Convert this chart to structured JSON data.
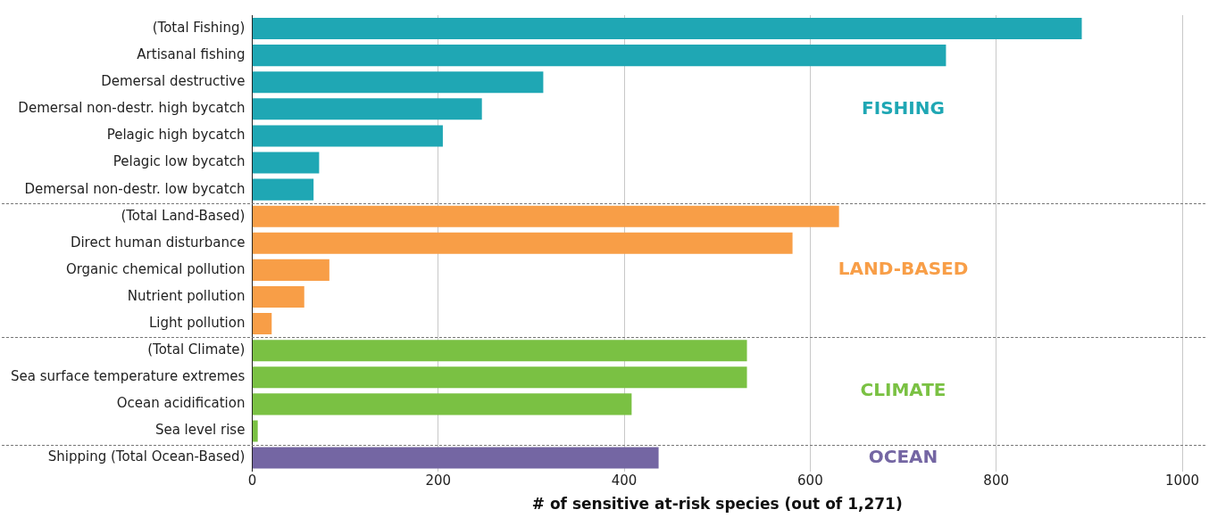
{
  "chart_data": {
    "type": "bar",
    "orientation": "horizontal",
    "xlabel": "# of sensitive at-risk species (out of 1,271)",
    "categories": [
      "(Total Fishing)",
      "Artisanal fishing",
      "Demersal destructive",
      "Demersal non-destr. high bycatch",
      "Pelagic high bycatch",
      "Pelagic low bycatch",
      "Demersal non-destr. low bycatch",
      "(Total Land-Based)",
      "Direct human disturbance",
      "Organic chemical pollution",
      "Nutrient pollution",
      "Light pollution",
      "(Total Climate)",
      "Sea surface temperature extremes",
      "Ocean acidification",
      "Sea level rise",
      "Shipping (Total Ocean-Based)"
    ],
    "values": [
      892,
      746,
      313,
      247,
      205,
      72,
      66,
      631,
      581,
      83,
      56,
      21,
      532,
      532,
      408,
      6,
      437
    ],
    "colors": [
      "#1fa7b4",
      "#1fa7b4",
      "#1fa7b4",
      "#1fa7b4",
      "#1fa7b4",
      "#1fa7b4",
      "#1fa7b4",
      "#f89e47",
      "#f89e47",
      "#f89e47",
      "#f89e47",
      "#f89e47",
      "#7ac143",
      "#7ac143",
      "#7ac143",
      "#7ac143",
      "#7466a3"
    ],
    "xlim": [
      0,
      1000
    ],
    "xticks": [
      0,
      200,
      400,
      600,
      800,
      1000
    ],
    "grid": "x",
    "legend": false,
    "annotations": [
      "FISHING",
      "LAND-BASED",
      "CLIMATE",
      "OCEAN"
    ]
  }
}
